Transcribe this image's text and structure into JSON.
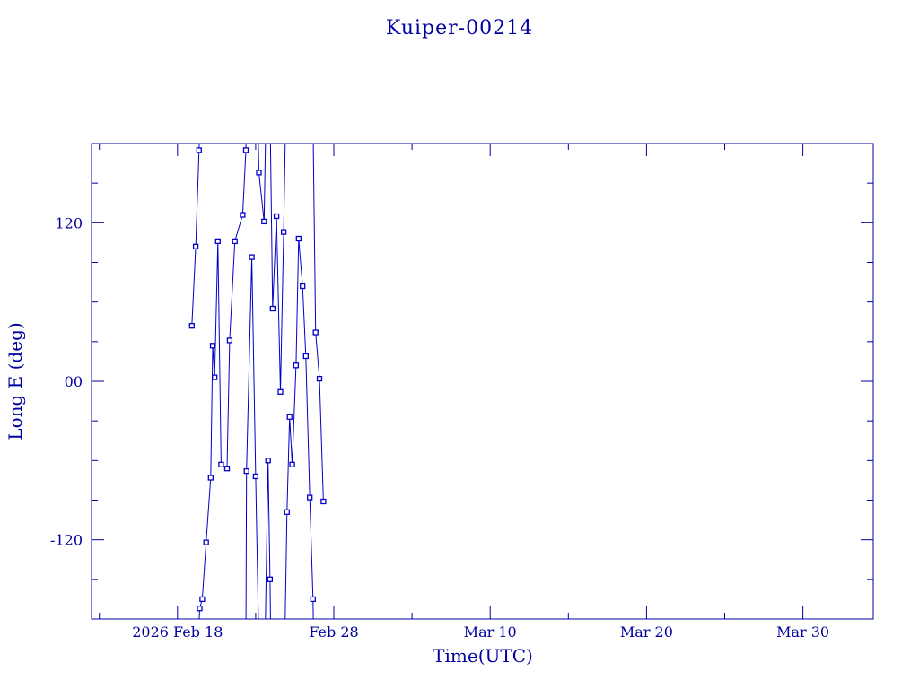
{
  "chart_data": {
    "type": "scatter",
    "title": "Kuiper-00214",
    "xlabel": "Time(UTC)",
    "ylabel": "Long E (deg)",
    "x_ticks": [
      {
        "date": "2026-02-18",
        "label": "2026 Feb 18"
      },
      {
        "date": "2026-02-28",
        "label": "Feb 28"
      },
      {
        "date": "2026-03-10",
        "label": "Mar 10"
      },
      {
        "date": "2026-03-20",
        "label": "Mar 20"
      },
      {
        "date": "2026-03-30",
        "label": "Mar 30"
      }
    ],
    "y_ticks": [
      {
        "value": 120,
        "label": "120"
      },
      {
        "value": 0,
        "label": "00"
      },
      {
        "value": -120,
        "label": "-120"
      }
    ],
    "xlim": [
      "2026-02-12T12:00",
      "2026-04-03T12:00"
    ],
    "ylim": [
      -180,
      180
    ],
    "marker": "square",
    "line_style": "connected, wraps at ±180",
    "colors": {
      "axis": "#0000a0",
      "series": "#0000c8"
    },
    "series": [
      {
        "points": [
          [
            "2026-02-18T22:00",
            42
          ],
          [
            "2026-02-19T04:00",
            102
          ],
          [
            "2026-02-19T09:00",
            175
          ],
          [
            "2026-02-19T10:00",
            -172
          ],
          [
            "2026-02-19T14:00",
            -165
          ],
          [
            "2026-02-19T20:00",
            -122
          ],
          [
            "2026-02-20T03:00",
            -73
          ],
          [
            "2026-02-20T06:00",
            27
          ],
          [
            "2026-02-20T09:00",
            3
          ],
          [
            "2026-02-20T14:00",
            106
          ],
          [
            "2026-02-20T19:00",
            -63
          ],
          [
            "2026-02-21T04:00",
            -66
          ],
          [
            "2026-02-21T08:00",
            31
          ],
          [
            "2026-02-21T16:00",
            106
          ],
          [
            "2026-02-22T04:00",
            126
          ],
          [
            "2026-02-22T09:00",
            175
          ],
          [
            "2026-02-22T10:00",
            -68
          ],
          [
            "2026-02-22T18:00",
            94
          ],
          [
            "2026-02-23T00:00",
            -72
          ],
          [
            "2026-02-23T05:00",
            158
          ],
          [
            "2026-02-23T13:00",
            121
          ],
          [
            "2026-02-23T19:00",
            -60
          ],
          [
            "2026-02-23T22:00",
            -150
          ],
          [
            "2026-02-24T02:00",
            55
          ],
          [
            "2026-02-24T08:00",
            125
          ],
          [
            "2026-02-24T14:00",
            -8
          ],
          [
            "2026-02-24T19:00",
            113
          ],
          [
            "2026-02-25T00:00",
            -99
          ],
          [
            "2026-02-25T04:00",
            -27
          ],
          [
            "2026-02-25T08:00",
            -63
          ],
          [
            "2026-02-25T14:00",
            12
          ],
          [
            "2026-02-25T18:00",
            108
          ],
          [
            "2026-02-26T00:00",
            72
          ],
          [
            "2026-02-26T05:00",
            19
          ],
          [
            "2026-02-26T11:00",
            -88
          ],
          [
            "2026-02-26T16:00",
            -165
          ],
          [
            "2026-02-26T20:00",
            37
          ],
          [
            "2026-02-27T02:00",
            2
          ],
          [
            "2026-02-27T08:00",
            -91
          ]
        ]
      }
    ]
  }
}
